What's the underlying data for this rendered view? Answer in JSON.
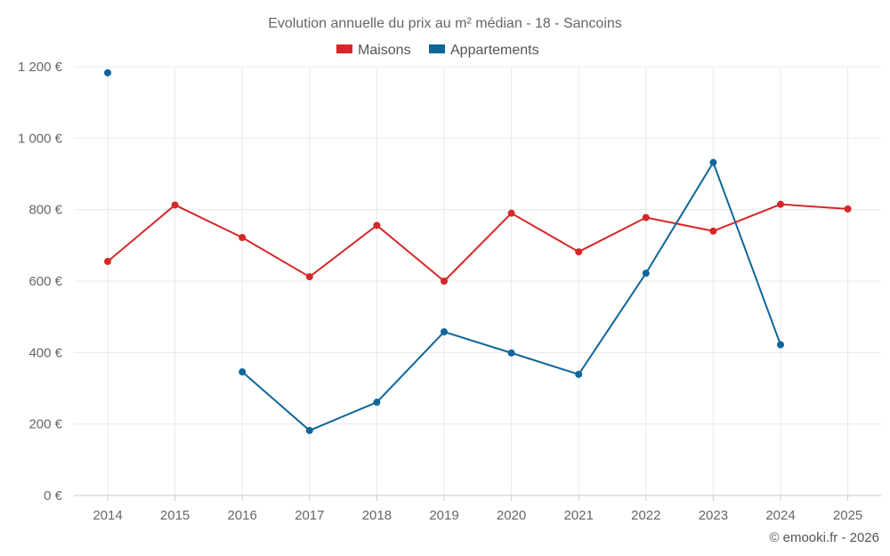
{
  "chart_data": {
    "type": "line",
    "title": "Evolution annuelle du prix au m² médian - 18 - Sancoins",
    "xlabel": "",
    "ylabel": "",
    "categories": [
      "2014",
      "2015",
      "2016",
      "2017",
      "2018",
      "2019",
      "2020",
      "2021",
      "2022",
      "2023",
      "2024",
      "2025"
    ],
    "ylim": [
      0,
      1200
    ],
    "yticks": [
      0,
      200,
      400,
      600,
      800,
      1000,
      1200
    ],
    "ytick_labels": [
      "0 €",
      "200 €",
      "400 €",
      "600 €",
      "800 €",
      "1 000 €",
      "1 200 €"
    ],
    "grid": true,
    "legend_position": "top-center",
    "series": [
      {
        "name": "Maisons",
        "color": "#d62728",
        "values": [
          655,
          813,
          722,
          612,
          756,
          600,
          790,
          682,
          778,
          740,
          815,
          802
        ]
      },
      {
        "name": "Appartements",
        "color": "#0e6699",
        "values": [
          1183,
          null,
          346,
          182,
          261,
          458,
          399,
          339,
          622,
          932,
          422,
          null
        ]
      }
    ]
  },
  "credit": "© emooki.fr - 2026"
}
